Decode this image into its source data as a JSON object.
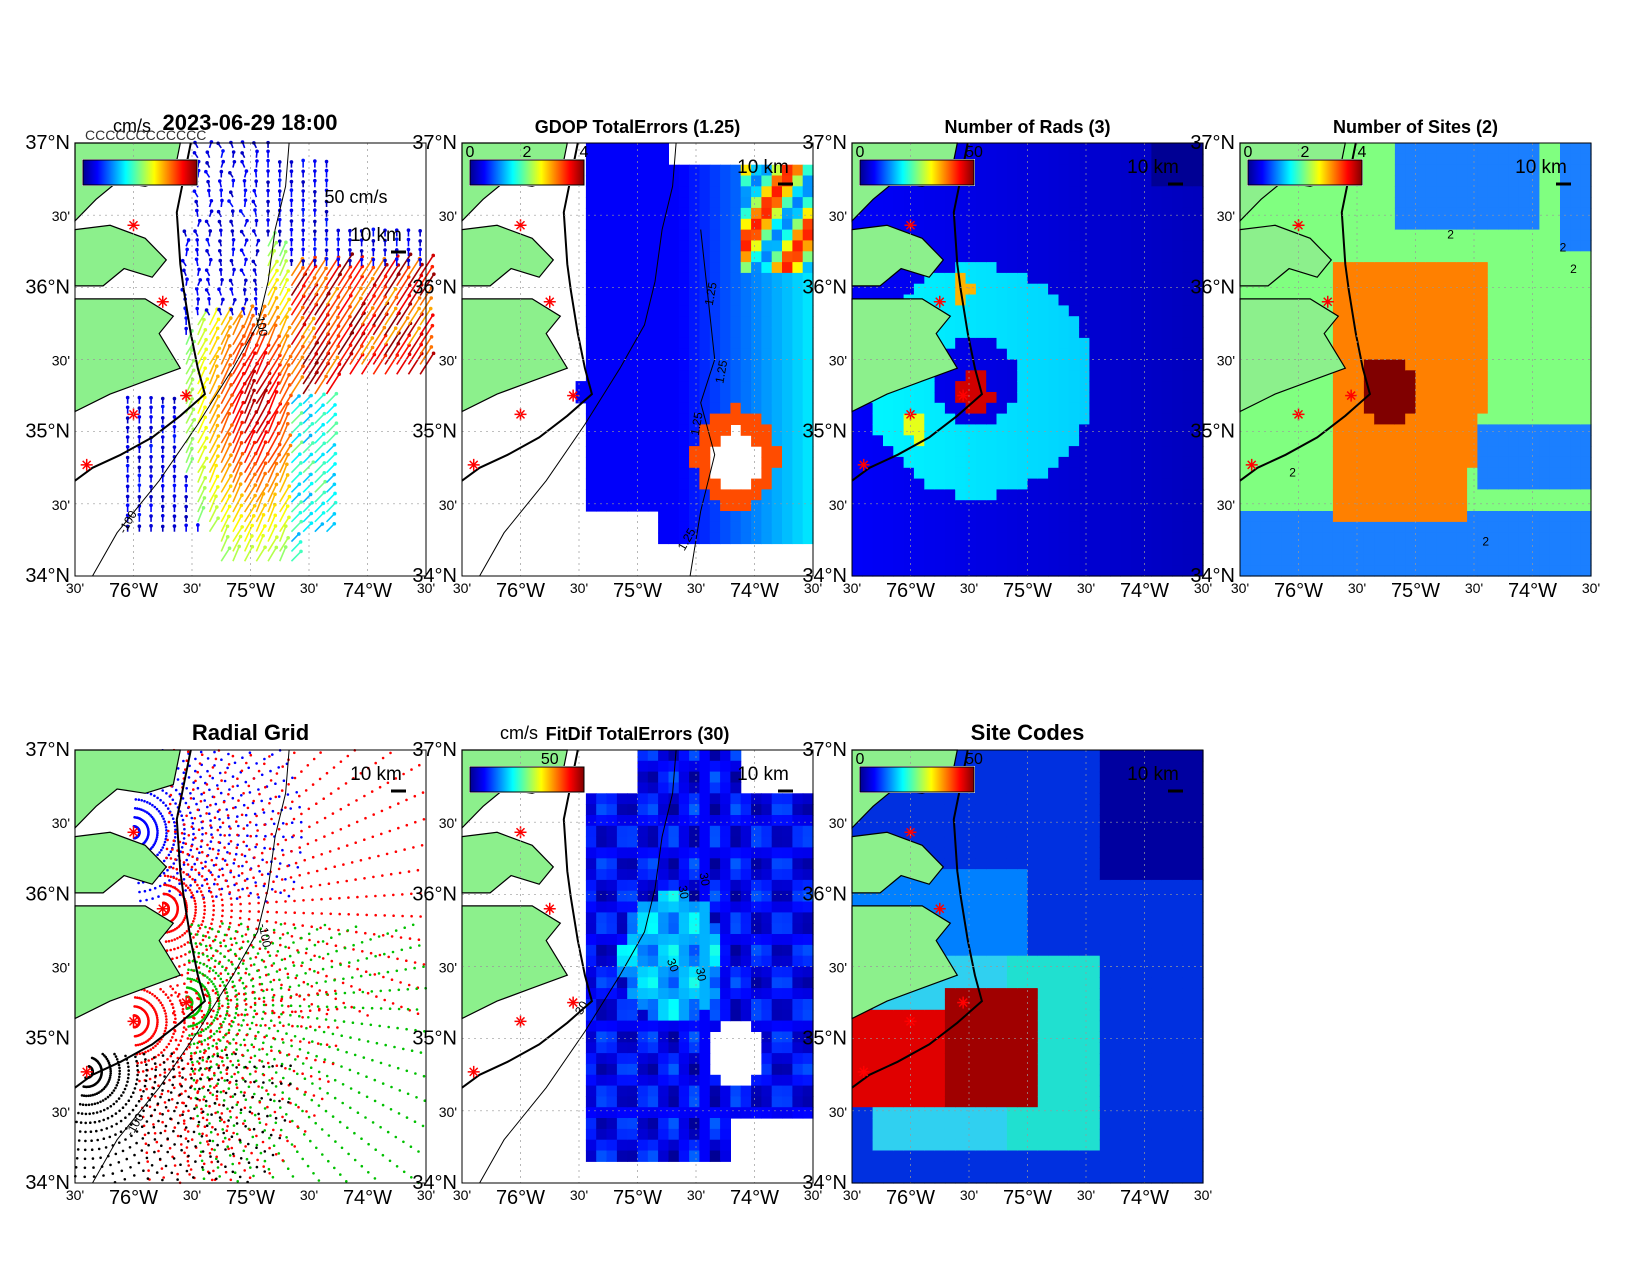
{
  "figure": {
    "timestamp": "2023-06-29 18:00",
    "overlap_glyphs": "CCCCCCCCCCCC"
  },
  "axes": {
    "lat_labels": [
      "37°N",
      "30'",
      "36°N",
      "30'",
      "35°N",
      "30'",
      "34°N"
    ],
    "lon_labels": [
      "30'",
      "76°W",
      "30'",
      "75°W",
      "30'",
      "74°W",
      "30'"
    ],
    "scale_label": "10 km",
    "isobath_label": "-100"
  },
  "panels": [
    {
      "id": "currents",
      "title": "",
      "unit": "cm/s",
      "cbar_ticks": [],
      "ref_vector": "50 cm/s",
      "contour_labels": [
        "-100",
        "-100"
      ]
    },
    {
      "id": "gdop",
      "title": "GDOP TotalErrors (1.25)",
      "unit": "",
      "cbar_ticks": [
        "0",
        "2",
        "4"
      ],
      "contour_labels": [
        "1.25",
        "1.25",
        "1.25",
        "1.25"
      ]
    },
    {
      "id": "rads",
      "title": "Number of Rads (3)",
      "unit": "",
      "cbar_ticks": [
        "0",
        "50"
      ],
      "contour_labels": []
    },
    {
      "id": "sites",
      "title": "Number of Sites (2)",
      "unit": "",
      "cbar_ticks": [
        "0",
        "2",
        "4"
      ],
      "contour_labels": [
        "2",
        "2",
        "2",
        "2",
        "2"
      ]
    },
    {
      "id": "radial",
      "title": "Radial Grid",
      "unit": "",
      "cbar_ticks": [],
      "contour_labels": [
        "-100",
        "-100"
      ]
    },
    {
      "id": "fitdif",
      "title": "FitDif TotalErrors (30)",
      "unit": "cm/s",
      "cbar_ticks": [
        "50"
      ],
      "contour_labels": [
        "30",
        "30",
        "30",
        "30",
        "30"
      ]
    },
    {
      "id": "codes",
      "title": "Site Codes",
      "unit": "",
      "cbar_ticks": [
        "0",
        "50"
      ],
      "contour_labels": []
    }
  ],
  "map_extent": {
    "lon": [
      -76.5,
      -73.5
    ],
    "lat": [
      34,
      37
    ]
  },
  "radar_sites": [
    {
      "lon": -76.0,
      "lat": 36.43
    },
    {
      "lon": -75.75,
      "lat": 35.9
    },
    {
      "lon": -75.55,
      "lat": 35.25
    },
    {
      "lon": -76.0,
      "lat": 35.12
    },
    {
      "lon": -76.4,
      "lat": 34.77
    }
  ],
  "colors": {
    "land": "#8cf08c",
    "site_marker": "#ff0000",
    "sites_low": "#1b7fff",
    "sites_mid": "#80ff80",
    "sites_high": "#ff8000",
    "sites_max": "#800000",
    "radial_site1": "#0000ff",
    "radial_site2": "#ff0000",
    "radial_site3": "#00c000",
    "radial_site4": "#000000"
  }
}
